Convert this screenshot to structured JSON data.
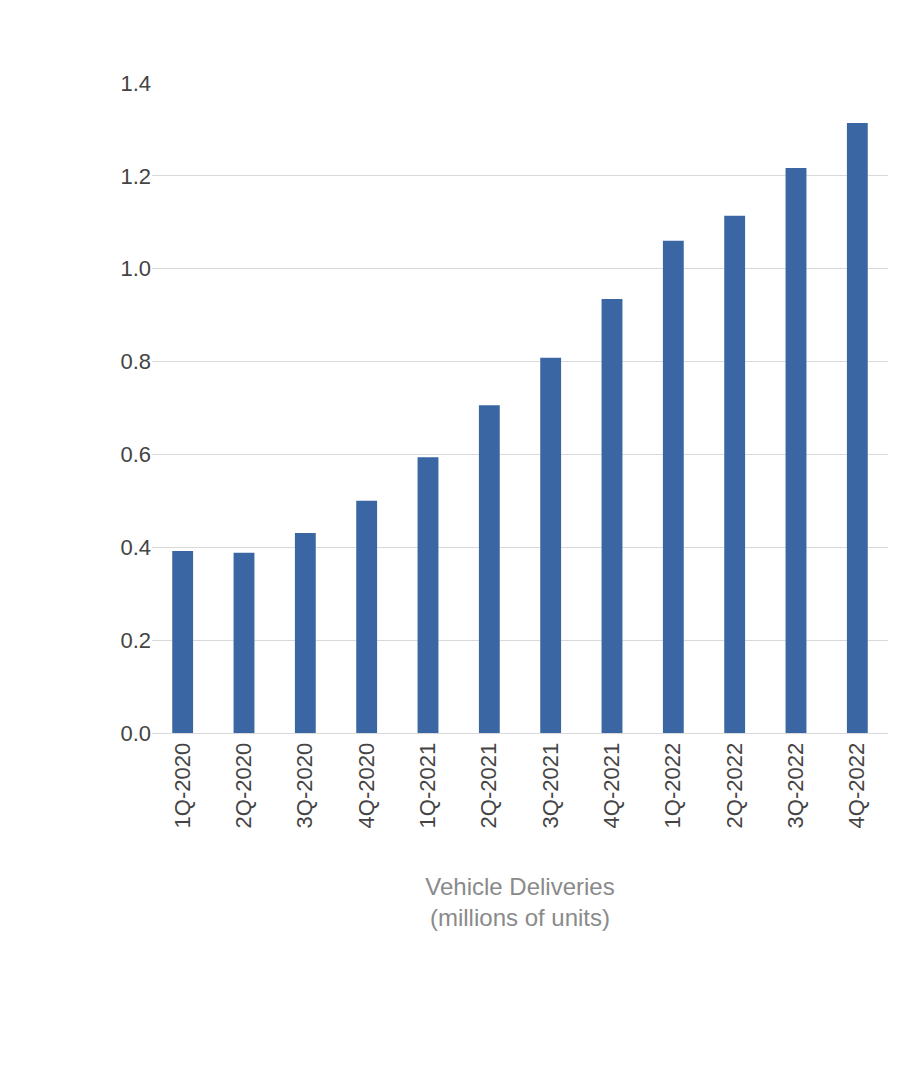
{
  "chart_data": {
    "type": "bar",
    "xlabel": "Vehicle Deliveries\n(millions of units)",
    "categories": [
      "1Q-2020",
      "2Q-2020",
      "3Q-2020",
      "4Q-2020",
      "1Q-2021",
      "2Q-2021",
      "3Q-2021",
      "4Q-2021",
      "1Q-2022",
      "2Q-2022",
      "3Q-2022",
      "4Q-2022"
    ],
    "values": [
      0.392,
      0.388,
      0.431,
      0.5,
      0.594,
      0.706,
      0.808,
      0.935,
      1.06,
      1.114,
      1.217,
      1.314
    ],
    "color": "#3a67a3",
    "ylim": [
      0,
      1.4
    ],
    "yticks": [
      {
        "value": 0,
        "label": "0.0"
      },
      0.2,
      0.4,
      0.6,
      0.8,
      {
        "value": 1,
        "label": "1.0"
      },
      1.2,
      1.4
    ],
    "grid": true
  }
}
